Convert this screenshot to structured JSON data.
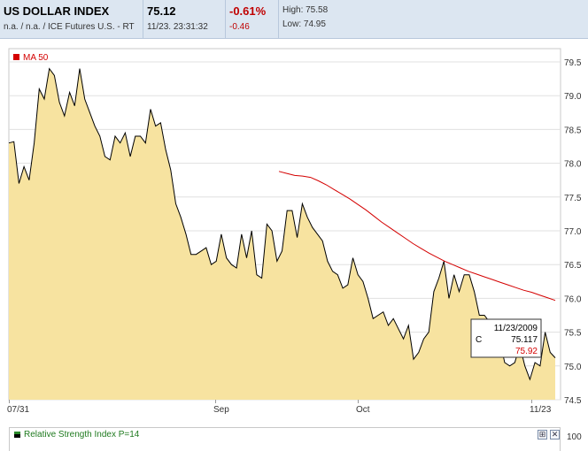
{
  "header": {
    "title": "US DOLLAR INDEX",
    "subtitle": "n.a. / n.a. / ICE Futures U.S. - RT",
    "price": "75.12",
    "timestamp": "11/23. 23:31:32",
    "change_pct": "-0.61%",
    "change_abs": "-0.46",
    "high_label": "High: 75.58",
    "low_label": "Low: 74.95"
  },
  "chart_data": {
    "type": "area",
    "x_tick_labels": [
      "07/31",
      "Sep",
      "Oct",
      "11/23"
    ],
    "y_ticks": [
      74.5,
      75.0,
      75.5,
      76.0,
      76.5,
      77.0,
      77.5,
      78.0,
      78.5,
      79.0,
      79.5
    ],
    "ylim": [
      74.5,
      79.6
    ],
    "grid": true,
    "legend": "top-left",
    "series": [
      {
        "name": "",
        "style": "area",
        "values": [
          78.3,
          78.32,
          77.7,
          77.95,
          77.75,
          78.3,
          79.1,
          78.95,
          79.4,
          79.3,
          78.9,
          78.7,
          79.05,
          78.85,
          79.4,
          78.95,
          78.75,
          78.55,
          78.4,
          78.1,
          78.05,
          78.4,
          78.3,
          78.45,
          78.1,
          78.4,
          78.4,
          78.3,
          78.8,
          78.55,
          78.6,
          78.2,
          77.9,
          77.4,
          77.2,
          76.95,
          76.65,
          76.65,
          76.7,
          76.75,
          76.5,
          76.55,
          76.95,
          76.6,
          76.5,
          76.45,
          76.95,
          76.6,
          77.0,
          76.35,
          76.3,
          77.1,
          77.0,
          76.55,
          76.7,
          77.3,
          77.3,
          76.9,
          77.4,
          77.2,
          77.05,
          76.95,
          76.85,
          76.55,
          76.4,
          76.35,
          76.15,
          76.2,
          76.6,
          76.35,
          76.25,
          76.0,
          75.7,
          75.75,
          75.8,
          75.6,
          75.7,
          75.55,
          75.4,
          75.6,
          75.1,
          75.2,
          75.4,
          75.5,
          76.1,
          76.3,
          76.55,
          76.0,
          76.35,
          76.1,
          76.35,
          76.35,
          76.1,
          75.75,
          75.75,
          75.65,
          75.5,
          75.4,
          75.05,
          75.0,
          75.05,
          75.3,
          75.0,
          74.8,
          75.05,
          75.0,
          75.5,
          75.2,
          75.12
        ]
      },
      {
        "name": "MA 50",
        "color": "#d40000",
        "start_index": 49,
        "values": [
          77.88,
          77.85,
          77.82,
          77.81,
          77.79,
          77.74,
          77.68,
          77.61,
          77.54,
          77.47,
          77.39,
          77.31,
          77.22,
          77.13,
          77.05,
          76.97,
          76.89,
          76.81,
          76.74,
          76.67,
          76.61,
          76.55,
          76.5,
          76.45,
          76.4,
          76.36,
          76.32,
          76.28,
          76.24,
          76.2,
          76.16,
          76.12,
          76.09,
          76.05,
          76.01,
          75.97
        ]
      }
    ]
  },
  "tooltip": {
    "date": "11/23/2009",
    "c_label": "C",
    "c_value": "75.117",
    "ma_value": "75.92"
  },
  "rsi_panel": {
    "label": "Relative Strength Index P=14",
    "axis_value": "100",
    "expand_symbol": "⊞",
    "close_symbol": "✕"
  },
  "colors": {
    "area_fill": "#f7e3a0",
    "price_line": "#000000",
    "ma_line": "#d40000",
    "header_bg": "#dce6f1",
    "grid": "#e0e0e0"
  }
}
